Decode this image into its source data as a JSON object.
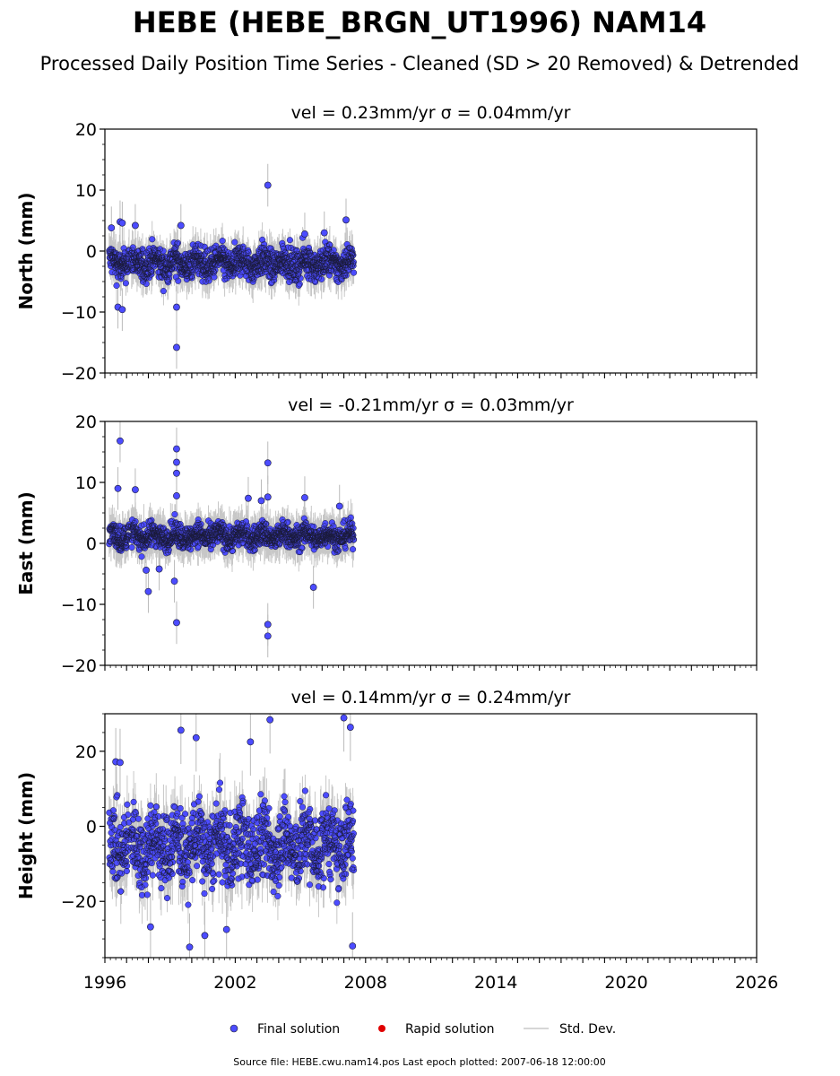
{
  "chart_data": {
    "type": "scatter",
    "title": "HEBE (HEBE_BRGN_UT1996) NAM14",
    "subtitle": "Processed Daily Position Time Series - Cleaned (SD > 20 Removed) & Detrended",
    "x_range": [
      1996,
      2026
    ],
    "x_ticks": [
      1996,
      2002,
      2008,
      2014,
      2020,
      2026
    ],
    "panels": [
      {
        "ylabel": "North (mm)",
        "annotation": "vel = 0.23mm/yr   σ = 0.04mm/yr",
        "ylim": [
          -20,
          20
        ],
        "y_ticks": [
          -20,
          -10,
          0,
          10,
          20
        ],
        "band": {
          "center": -2,
          "spread": 2.2,
          "err_lo": 1.5,
          "err_hi": 3.5
        },
        "outliers": [
          {
            "x": 1996.3,
            "y": 3.8
          },
          {
            "x": 1996.7,
            "y": 4.8
          },
          {
            "x": 1996.8,
            "y": 4.6
          },
          {
            "x": 1996.6,
            "y": -9.2
          },
          {
            "x": 1996.8,
            "y": -9.6
          },
          {
            "x": 1997.4,
            "y": 4.2
          },
          {
            "x": 1999.3,
            "y": -15.8
          },
          {
            "x": 1999.3,
            "y": -9.2
          },
          {
            "x": 1999.5,
            "y": 4.2
          },
          {
            "x": 2003.5,
            "y": 10.8
          },
          {
            "x": 2007.1,
            "y": 5.1
          },
          {
            "x": 2005.2,
            "y": 2.8
          },
          {
            "x": 2006.1,
            "y": 3.0
          }
        ]
      },
      {
        "ylabel": "East (mm)",
        "annotation": "vel = -0.21mm/yr   σ = 0.03mm/yr",
        "ylim": [
          -20,
          20
        ],
        "y_ticks": [
          -20,
          -10,
          0,
          10,
          20
        ],
        "band": {
          "center": 1.2,
          "spread": 1.7,
          "err_lo": 1.5,
          "err_hi": 3.5
        },
        "outliers": [
          {
            "x": 1996.7,
            "y": 16.8
          },
          {
            "x": 1996.6,
            "y": 9.0
          },
          {
            "x": 1997.4,
            "y": 8.8
          },
          {
            "x": 1997.9,
            "y": -4.4
          },
          {
            "x": 1998.0,
            "y": -7.9
          },
          {
            "x": 1998.5,
            "y": -4.2
          },
          {
            "x": 1999.3,
            "y": 15.5
          },
          {
            "x": 1999.3,
            "y": 13.3
          },
          {
            "x": 1999.3,
            "y": 11.5
          },
          {
            "x": 1999.3,
            "y": 7.8
          },
          {
            "x": 1999.2,
            "y": -6.2
          },
          {
            "x": 1999.3,
            "y": -13.0
          },
          {
            "x": 2003.5,
            "y": 13.2
          },
          {
            "x": 2003.5,
            "y": 7.6
          },
          {
            "x": 2003.2,
            "y": 7.0
          },
          {
            "x": 2002.6,
            "y": 7.4
          },
          {
            "x": 2003.5,
            "y": -13.3
          },
          {
            "x": 2003.5,
            "y": -15.2
          },
          {
            "x": 2005.2,
            "y": 7.5
          },
          {
            "x": 2005.6,
            "y": -7.2
          },
          {
            "x": 2006.8,
            "y": 6.1
          }
        ]
      },
      {
        "ylabel": "Height (mm)",
        "annotation": "vel = 0.14mm/yr   σ = 0.24mm/yr",
        "ylim": [
          -35,
          30
        ],
        "y_ticks": [
          -20,
          0,
          20
        ],
        "band": {
          "center": -5,
          "spread": 8.5,
          "err_lo": 3,
          "err_hi": 9
        },
        "outliers": [
          {
            "x": 1996.5,
            "y": 17.2
          },
          {
            "x": 1996.7,
            "y": 17.0
          },
          {
            "x": 1999.5,
            "y": 25.6
          },
          {
            "x": 2000.2,
            "y": 23.6
          },
          {
            "x": 2002.7,
            "y": 22.5
          },
          {
            "x": 2003.6,
            "y": 28.4
          },
          {
            "x": 2007.0,
            "y": 28.9
          },
          {
            "x": 2007.3,
            "y": 26.4
          },
          {
            "x": 1999.9,
            "y": -32.2
          },
          {
            "x": 2007.4,
            "y": -31.9
          },
          {
            "x": 2001.6,
            "y": -27.5
          },
          {
            "x": 1998.1,
            "y": -26.8
          },
          {
            "x": 2000.6,
            "y": -29.1
          }
        ]
      }
    ],
    "series": [
      {
        "name": "Final solution",
        "color": "#4c4cff"
      },
      {
        "name": "Rapid solution",
        "color": "#e00000"
      },
      {
        "name": "Std. Dev.",
        "color": "#c8c8c8"
      }
    ],
    "data_span": [
      1996.2,
      2007.46
    ],
    "legend_position": "bottom-center"
  },
  "footer": "Source file: HEBE.cwu.nam14.pos  Last epoch plotted: 2007-06-18 12:00:00"
}
